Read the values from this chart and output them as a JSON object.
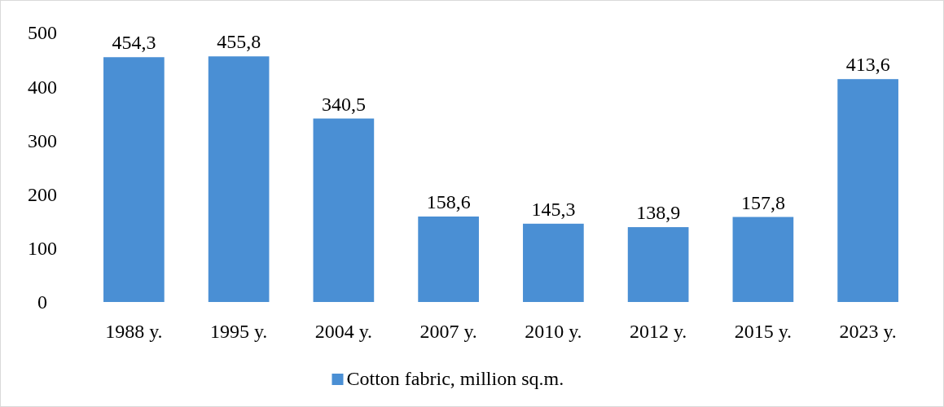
{
  "chart_data": {
    "type": "bar",
    "categories": [
      "1988 y.",
      "1995 y.",
      "2004 y.",
      "2007 y.",
      "2010 y.",
      "2012 y.",
      "2015 y.",
      "2023 y."
    ],
    "series": [
      {
        "name": "Cotton fabric, million sq.m.",
        "color": "#4a8fd4",
        "values": [
          454.3,
          455.8,
          340.5,
          158.6,
          145.3,
          138.9,
          157.8,
          413.6
        ],
        "value_labels": [
          "454,3",
          "455,8",
          "340,5",
          "158,6",
          "145,3",
          "138,9",
          "157,8",
          "413,6"
        ]
      }
    ],
    "ylim": [
      0,
      500
    ],
    "yticks": [
      0,
      100,
      200,
      300,
      400,
      500
    ],
    "grid": false,
    "legend": "bottom"
  }
}
